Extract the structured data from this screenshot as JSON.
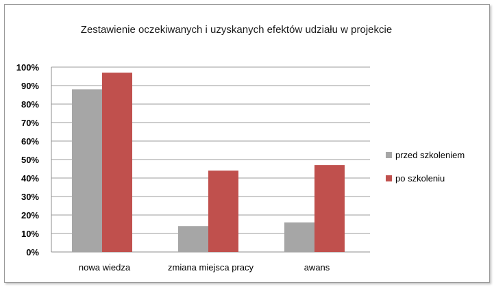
{
  "chart_data": {
    "type": "bar",
    "title": "Zestawienie oczekiwanych i uzyskanych efektów udziału w projekcie",
    "categories": [
      "nowa wiedza",
      "zmiana miejsca pracy",
      "awans"
    ],
    "series": [
      {
        "name": "przed szkoleniem",
        "values": [
          88,
          14,
          16
        ],
        "color": "#a6a6a6"
      },
      {
        "name": "po szkoleniu",
        "values": [
          97,
          44,
          47
        ],
        "color": "#c0504d"
      }
    ],
    "yticks": [
      "0%",
      "10%",
      "20%",
      "30%",
      "40%",
      "50%",
      "60%",
      "70%",
      "80%",
      "90%",
      "100%"
    ],
    "ylim": [
      0,
      100
    ],
    "grid": true,
    "legend_position": "right"
  }
}
